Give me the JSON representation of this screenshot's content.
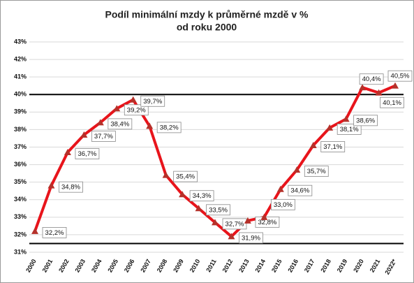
{
  "chart_data": {
    "type": "line",
    "title": [
      "Podíl minimální mzdy k průměrné mzdě v %",
      "od roku 2000"
    ],
    "categories": [
      "2000",
      "2001",
      "2002",
      "2003",
      "2004",
      "2005",
      "2006",
      "2007",
      "2008",
      "2009",
      "2010",
      "2011",
      "2012",
      "2013",
      "2014",
      "2015",
      "2016",
      "2017",
      "2018",
      "2019",
      "2020",
      "2021",
      "2022*"
    ],
    "series": [
      {
        "color": "#e8141b",
        "marker_color": "#b5312a",
        "values": [
          32.2,
          34.8,
          36.7,
          37.7,
          38.4,
          39.2,
          39.7,
          38.2,
          35.4,
          34.3,
          33.5,
          32.7,
          31.9,
          32.8,
          33.0,
          34.6,
          35.7,
          37.1,
          38.1,
          38.6,
          40.4,
          40.1,
          40.5
        ],
        "value_labels": [
          "32,2%",
          "34,8%",
          "36,7%",
          "37,7%",
          "38,4%",
          "39,2%",
          "39,7%",
          "38,2%",
          "35,4%",
          "34,3%",
          "33,5%",
          "32,7%",
          "31,9%",
          "32,8%",
          "33,0%",
          "34,6%",
          "35,7%",
          "37,1%",
          "38,1%",
          "38,6%",
          "40,4%",
          "40,1%",
          "40,5%"
        ]
      }
    ],
    "ylim": [
      31,
      43
    ],
    "yticks": [
      {
        "value": 31,
        "label": "31%"
      },
      {
        "value": 32,
        "label": "32%"
      },
      {
        "value": 33,
        "label": "33%"
      },
      {
        "value": 34,
        "label": "34%"
      },
      {
        "value": 35,
        "label": "35%"
      },
      {
        "value": 36,
        "label": "36%"
      },
      {
        "value": 37,
        "label": "37%"
      },
      {
        "value": 38,
        "label": "38%"
      },
      {
        "value": 39,
        "label": "39%"
      },
      {
        "value": 40,
        "label": "40%"
      },
      {
        "value": 41,
        "label": "41%"
      },
      {
        "value": 42,
        "label": "42%"
      },
      {
        "value": 43,
        "label": "43%"
      }
    ],
    "reference_lines": [
      40,
      31.5
    ],
    "grid": true
  }
}
